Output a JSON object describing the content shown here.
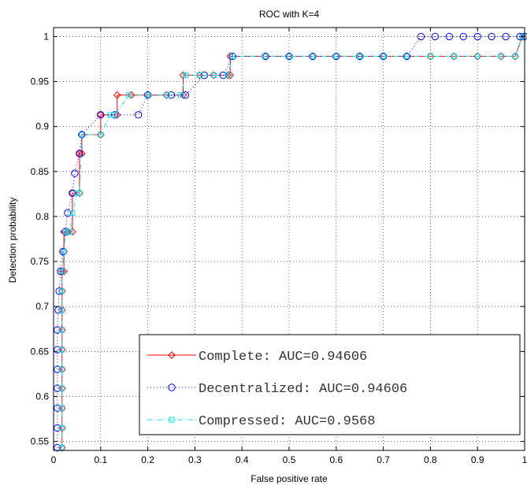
{
  "chart_data": {
    "type": "line",
    "title": "ROC with K=4",
    "xlabel": "False positive rate",
    "ylabel": "Detection probability",
    "xlim": [
      0,
      1
    ],
    "ylim": [
      0.54,
      1.01
    ],
    "grid": true,
    "legend_position": "bottom-right",
    "x_ticks": [
      0,
      0.1,
      0.2,
      0.3,
      0.4,
      0.5,
      0.6,
      0.7,
      0.8,
      0.9,
      1
    ],
    "x_tick_labels": [
      "0",
      "0.1",
      "0.2",
      "0.3",
      "0.4",
      "0.5",
      "0.6",
      "0.7",
      "0.8",
      "0.9",
      "1"
    ],
    "y_ticks": [
      0.55,
      0.6,
      0.65,
      0.7,
      0.75,
      0.8,
      0.85,
      0.9,
      0.95,
      1
    ],
    "y_tick_labels": [
      "0.55",
      "0.6",
      "0.65",
      "0.7",
      "0.75",
      "0.8",
      "0.85",
      "0.9",
      "0.95",
      "1"
    ],
    "series": [
      {
        "name": "Complete: AUC=0.94606",
        "color": "#ff0000",
        "marker": "diamond",
        "line_style": "solid",
        "x": [
          0.018,
          0.018,
          0.018,
          0.018,
          0.018,
          0.018,
          0.018,
          0.018,
          0.018,
          0.018,
          0.022,
          0.022,
          0.022,
          0.03,
          0.03,
          0.04,
          0.04,
          0.055,
          0.055,
          0.06,
          0.06,
          0.1,
          0.1,
          0.135,
          0.135,
          0.165,
          0.2,
          0.24,
          0.275,
          0.275,
          0.31,
          0.34,
          0.37,
          0.375,
          0.375,
          0.45,
          0.5,
          0.55,
          0.6,
          0.65,
          0.7,
          0.75,
          0.8,
          0.85,
          0.9,
          0.95,
          0.98,
          0.995,
          1
        ],
        "y": [
          0.543,
          0.565,
          0.587,
          0.609,
          0.63,
          0.652,
          0.674,
          0.696,
          0.717,
          0.739,
          0.739,
          0.761,
          0.783,
          0.783,
          0.783,
          0.783,
          0.826,
          0.826,
          0.87,
          0.87,
          0.891,
          0.891,
          0.913,
          0.913,
          0.935,
          0.935,
          0.935,
          0.935,
          0.935,
          0.957,
          0.957,
          0.957,
          0.957,
          0.957,
          0.978,
          0.978,
          0.978,
          0.978,
          0.978,
          0.978,
          0.978,
          0.978,
          0.978,
          0.978,
          0.978,
          0.978,
          0.978,
          1,
          1
        ]
      },
      {
        "name": "Decentralized: AUC=0.94606",
        "color": "#0000ff",
        "marker": "circle",
        "line_style": "dotted",
        "x": [
          0.008,
          0.008,
          0.008,
          0.008,
          0.008,
          0.008,
          0.008,
          0.01,
          0.012,
          0.015,
          0.02,
          0.025,
          0.03,
          0.04,
          0.045,
          0.055,
          0.06,
          0.1,
          0.13,
          0.18,
          0.2,
          0.25,
          0.28,
          0.32,
          0.36,
          0.38,
          0.45,
          0.5,
          0.55,
          0.6,
          0.65,
          0.7,
          0.75,
          0.78,
          0.81,
          0.84,
          0.87,
          0.9,
          0.93,
          0.96,
          0.99,
          1
        ],
        "y": [
          0.543,
          0.565,
          0.587,
          0.609,
          0.63,
          0.652,
          0.674,
          0.696,
          0.717,
          0.739,
          0.761,
          0.783,
          0.804,
          0.826,
          0.848,
          0.87,
          0.891,
          0.913,
          0.913,
          0.913,
          0.935,
          0.935,
          0.935,
          0.957,
          0.957,
          0.978,
          0.978,
          0.978,
          0.978,
          0.978,
          0.978,
          0.978,
          0.978,
          1,
          1,
          1,
          1,
          1,
          1,
          1,
          1,
          1
        ]
      },
      {
        "name": "Compressed: AUC=0.9568",
        "color": "#00e5ee",
        "marker": "square",
        "line_style": "dashdot",
        "x": [
          0.018,
          0.018,
          0.018,
          0.018,
          0.018,
          0.018,
          0.018,
          0.018,
          0.018,
          0.018,
          0.022,
          0.025,
          0.03,
          0.035,
          0.04,
          0.05,
          0.055,
          0.06,
          0.1,
          0.12,
          0.13,
          0.16,
          0.2,
          0.24,
          0.27,
          0.28,
          0.31,
          0.34,
          0.37,
          0.38,
          0.45,
          0.5,
          0.55,
          0.6,
          0.65,
          0.7,
          0.75,
          0.8,
          0.85,
          0.9,
          0.95,
          0.98,
          0.995,
          1
        ],
        "y": [
          0.543,
          0.565,
          0.587,
          0.609,
          0.63,
          0.652,
          0.674,
          0.696,
          0.717,
          0.739,
          0.761,
          0.783,
          0.783,
          0.783,
          0.804,
          0.826,
          0.826,
          0.891,
          0.891,
          0.913,
          0.913,
          0.935,
          0.935,
          0.935,
          0.935,
          0.957,
          0.957,
          0.957,
          0.957,
          0.978,
          0.978,
          0.978,
          0.978,
          0.978,
          0.978,
          0.978,
          0.978,
          0.978,
          0.978,
          0.978,
          0.978,
          0.978,
          1,
          1
        ]
      }
    ]
  }
}
